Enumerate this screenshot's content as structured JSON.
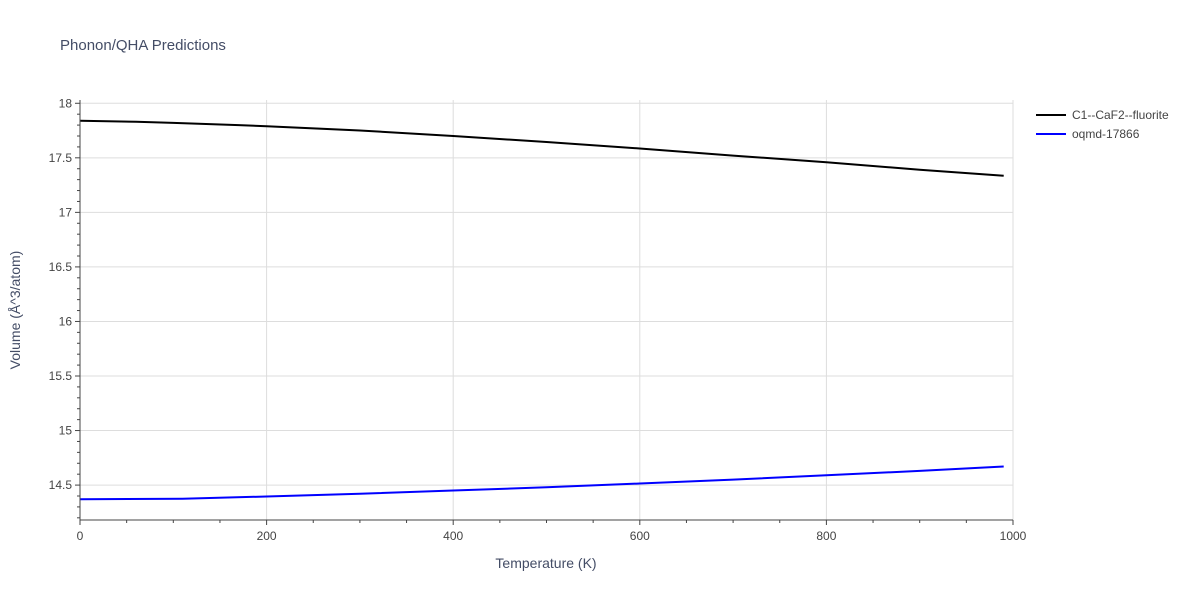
{
  "chart_data": {
    "type": "line",
    "title": "Phonon/QHA Predictions",
    "xlabel": "Temperature (K)",
    "ylabel": "Volume (Å^3/atom)",
    "xlim": [
      0,
      1000
    ],
    "ylim": [
      14.18,
      18.03
    ],
    "x_ticks": [
      0,
      200,
      400,
      600,
      800,
      1000
    ],
    "y_ticks": [
      14.5,
      15,
      15.5,
      16,
      16.5,
      17,
      17.5,
      18
    ],
    "y_tick_labels": [
      "14.5",
      "15",
      "15.5",
      "16",
      "16.5",
      "17",
      "17.5",
      "18"
    ],
    "grid": true,
    "legend_position": "top-right",
    "series": [
      {
        "name": "C1--CaF2--fluorite",
        "color": "#000000",
        "x": [
          0,
          60,
          100,
          170,
          200,
          300,
          400,
          500,
          600,
          700,
          800,
          900,
          990
        ],
        "y": [
          17.84,
          17.83,
          17.82,
          17.8,
          17.79,
          17.75,
          17.7,
          17.645,
          17.585,
          17.52,
          17.46,
          17.39,
          17.335
        ]
      },
      {
        "name": "oqmd-17866",
        "color": "#0000ff",
        "x": [
          0,
          110,
          200,
          300,
          400,
          500,
          600,
          700,
          800,
          900,
          990
        ],
        "y": [
          14.37,
          14.375,
          14.395,
          14.42,
          14.45,
          14.48,
          14.515,
          14.55,
          14.59,
          14.63,
          14.67
        ]
      }
    ]
  }
}
